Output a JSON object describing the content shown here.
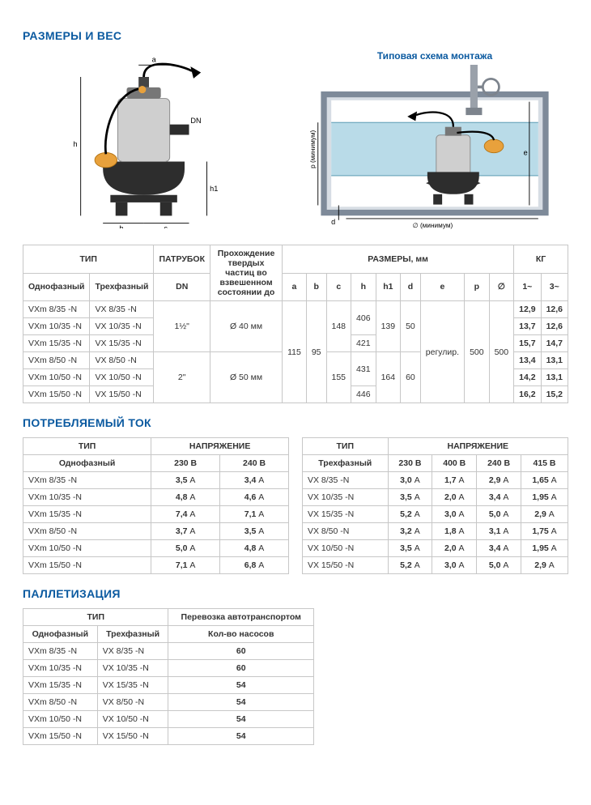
{
  "colors": {
    "heading": "#0b5aa0",
    "border": "#c7c7c7",
    "text": "#333333",
    "tank_outline": "#7e8a99",
    "tank_fill": "#d7dde4",
    "water": "#b9dbe8",
    "pump_body": "#cfcfcf",
    "pump_base": "#2d2d2d",
    "float_color": "#e8a13c"
  },
  "sections": {
    "dimensions_title": "РАЗМЕРЫ И ВЕС",
    "install_title": "Типовая схема монтажа",
    "current_title": "ПОТРЕБЛЯЕМЫЙ ТОК",
    "pallet_title": "ПАЛЛЕТИЗАЦИЯ"
  },
  "dim_labels": {
    "a": "a",
    "b": "b",
    "c": "c",
    "h": "h",
    "h1": "h1",
    "DN": "DN",
    "d": "d",
    "e": "e",
    "p_label": "p (минимум)",
    "diam_label": "∅   (минимум)"
  },
  "dim_table": {
    "headers": {
      "type": "ТИП",
      "pipe": "ПАТРУБОК",
      "solids": "Прохождение твердых частиц во взвешенном состоянии до",
      "sizes": "РАЗМЕРЫ, мм",
      "kg": "КГ",
      "single": "Однофазный",
      "three": "Трехфазный",
      "dn": "DN",
      "a": "a",
      "b": "b",
      "c": "c",
      "h": "h",
      "h1": "h1",
      "d": "d",
      "e": "e",
      "p": "p",
      "diam": "∅",
      "w1": "1~",
      "w3": "3~"
    },
    "cells": {
      "dn1": "1½\"",
      "dn2": "2\"",
      "s1": "Ø 40 мм",
      "s2": "Ø 50 мм",
      "a": "115",
      "b": "95",
      "c1": "148",
      "c2": "155",
      "h1": "406",
      "h2": "421",
      "h3": "431",
      "h4": "446",
      "h1a": "139",
      "h1b": "164",
      "d1": "50",
      "d2": "60",
      "e": "регулир.",
      "p": "500",
      "diam": "500"
    },
    "rows": [
      {
        "m1": "VXm 8/35   -N",
        "m3": "VX 8/35   -N",
        "w1": "12,9",
        "w3": "12,6"
      },
      {
        "m1": "VXm 10/35 -N",
        "m3": "VX 10/35 -N",
        "w1": "13,7",
        "w3": "12,6"
      },
      {
        "m1": "VXm 15/35 -N",
        "m3": "VX 15/35 -N",
        "w1": "15,7",
        "w3": "14,7"
      },
      {
        "m1": "VXm 8/50   -N",
        "m3": "VX 8/50   -N",
        "w1": "13,4",
        "w3": "13,1"
      },
      {
        "m1": "VXm 10/50 -N",
        "m3": "VX 10/50 -N",
        "w1": "14,2",
        "w3": "13,1"
      },
      {
        "m1": "VXm 15/50 -N",
        "m3": "VX 15/50 -N",
        "w1": "16,2",
        "w3": "15,2"
      }
    ]
  },
  "current": {
    "headers": {
      "type": "ТИП",
      "volt": "НАПРЯЖЕНИЕ",
      "single": "Однофазный",
      "three": "Трехфазный",
      "v230": "230 В",
      "v240": "240 В",
      "v400": "400 В",
      "v415": "415 В"
    },
    "single_rows": [
      {
        "m": "VXm 8/35   -N",
        "v230": "3,5",
        "v240": "3,4"
      },
      {
        "m": "VXm 10/35 -N",
        "v230": "4,8",
        "v240": "4,6"
      },
      {
        "m": "VXm 15/35 -N",
        "v230": "7,4",
        "v240": "7,1"
      },
      {
        "m": "VXm 8/50   -N",
        "v230": "3,7",
        "v240": "3,5"
      },
      {
        "m": "VXm 10/50 -N",
        "v230": "5,0",
        "v240": "4,8"
      },
      {
        "m": "VXm 15/50 -N",
        "v230": "7,1",
        "v240": "6,8"
      }
    ],
    "three_rows": [
      {
        "m": "VX 8/35   -N",
        "v230": "3,0",
        "v400": "1,7",
        "v240": "2,9",
        "v415": "1,65"
      },
      {
        "m": "VX 10/35 -N",
        "v230": "3,5",
        "v400": "2,0",
        "v240": "3,4",
        "v415": "1,95"
      },
      {
        "m": "VX 15/35 -N",
        "v230": "5,2",
        "v400": "3,0",
        "v240": "5,0",
        "v415": "2,9"
      },
      {
        "m": "VX 8/50   -N",
        "v230": "3,2",
        "v400": "1,8",
        "v240": "3,1",
        "v415": "1,75"
      },
      {
        "m": "VX 10/50 -N",
        "v230": "3,5",
        "v400": "2,0",
        "v240": "3,4",
        "v415": "1,95"
      },
      {
        "m": "VX 15/50 -N",
        "v230": "5,2",
        "v400": "3,0",
        "v240": "5,0",
        "v415": "2,9"
      }
    ],
    "unit": "А"
  },
  "pallet": {
    "headers": {
      "type": "ТИП",
      "road": "Перевозка автотранспортом",
      "single": "Однофазный",
      "three": "Трехфазный",
      "qty": "Кол-во насосов"
    },
    "rows": [
      {
        "m1": "VXm 8/35   -N",
        "m3": "VX 8/35   -N",
        "qty": "60"
      },
      {
        "m1": "VXm 10/35 -N",
        "m3": "VX 10/35 -N",
        "qty": "60"
      },
      {
        "m1": "VXm 15/35 -N",
        "m3": "VX 15/35 -N",
        "qty": "54"
      },
      {
        "m1": "VXm 8/50   -N",
        "m3": "VX 8/50   -N",
        "qty": "54"
      },
      {
        "m1": "VXm 10/50 -N",
        "m3": "VX 10/50 -N",
        "qty": "54"
      },
      {
        "m1": "VXm 15/50 -N",
        "m3": "VX 15/50 -N",
        "qty": "54"
      }
    ]
  }
}
